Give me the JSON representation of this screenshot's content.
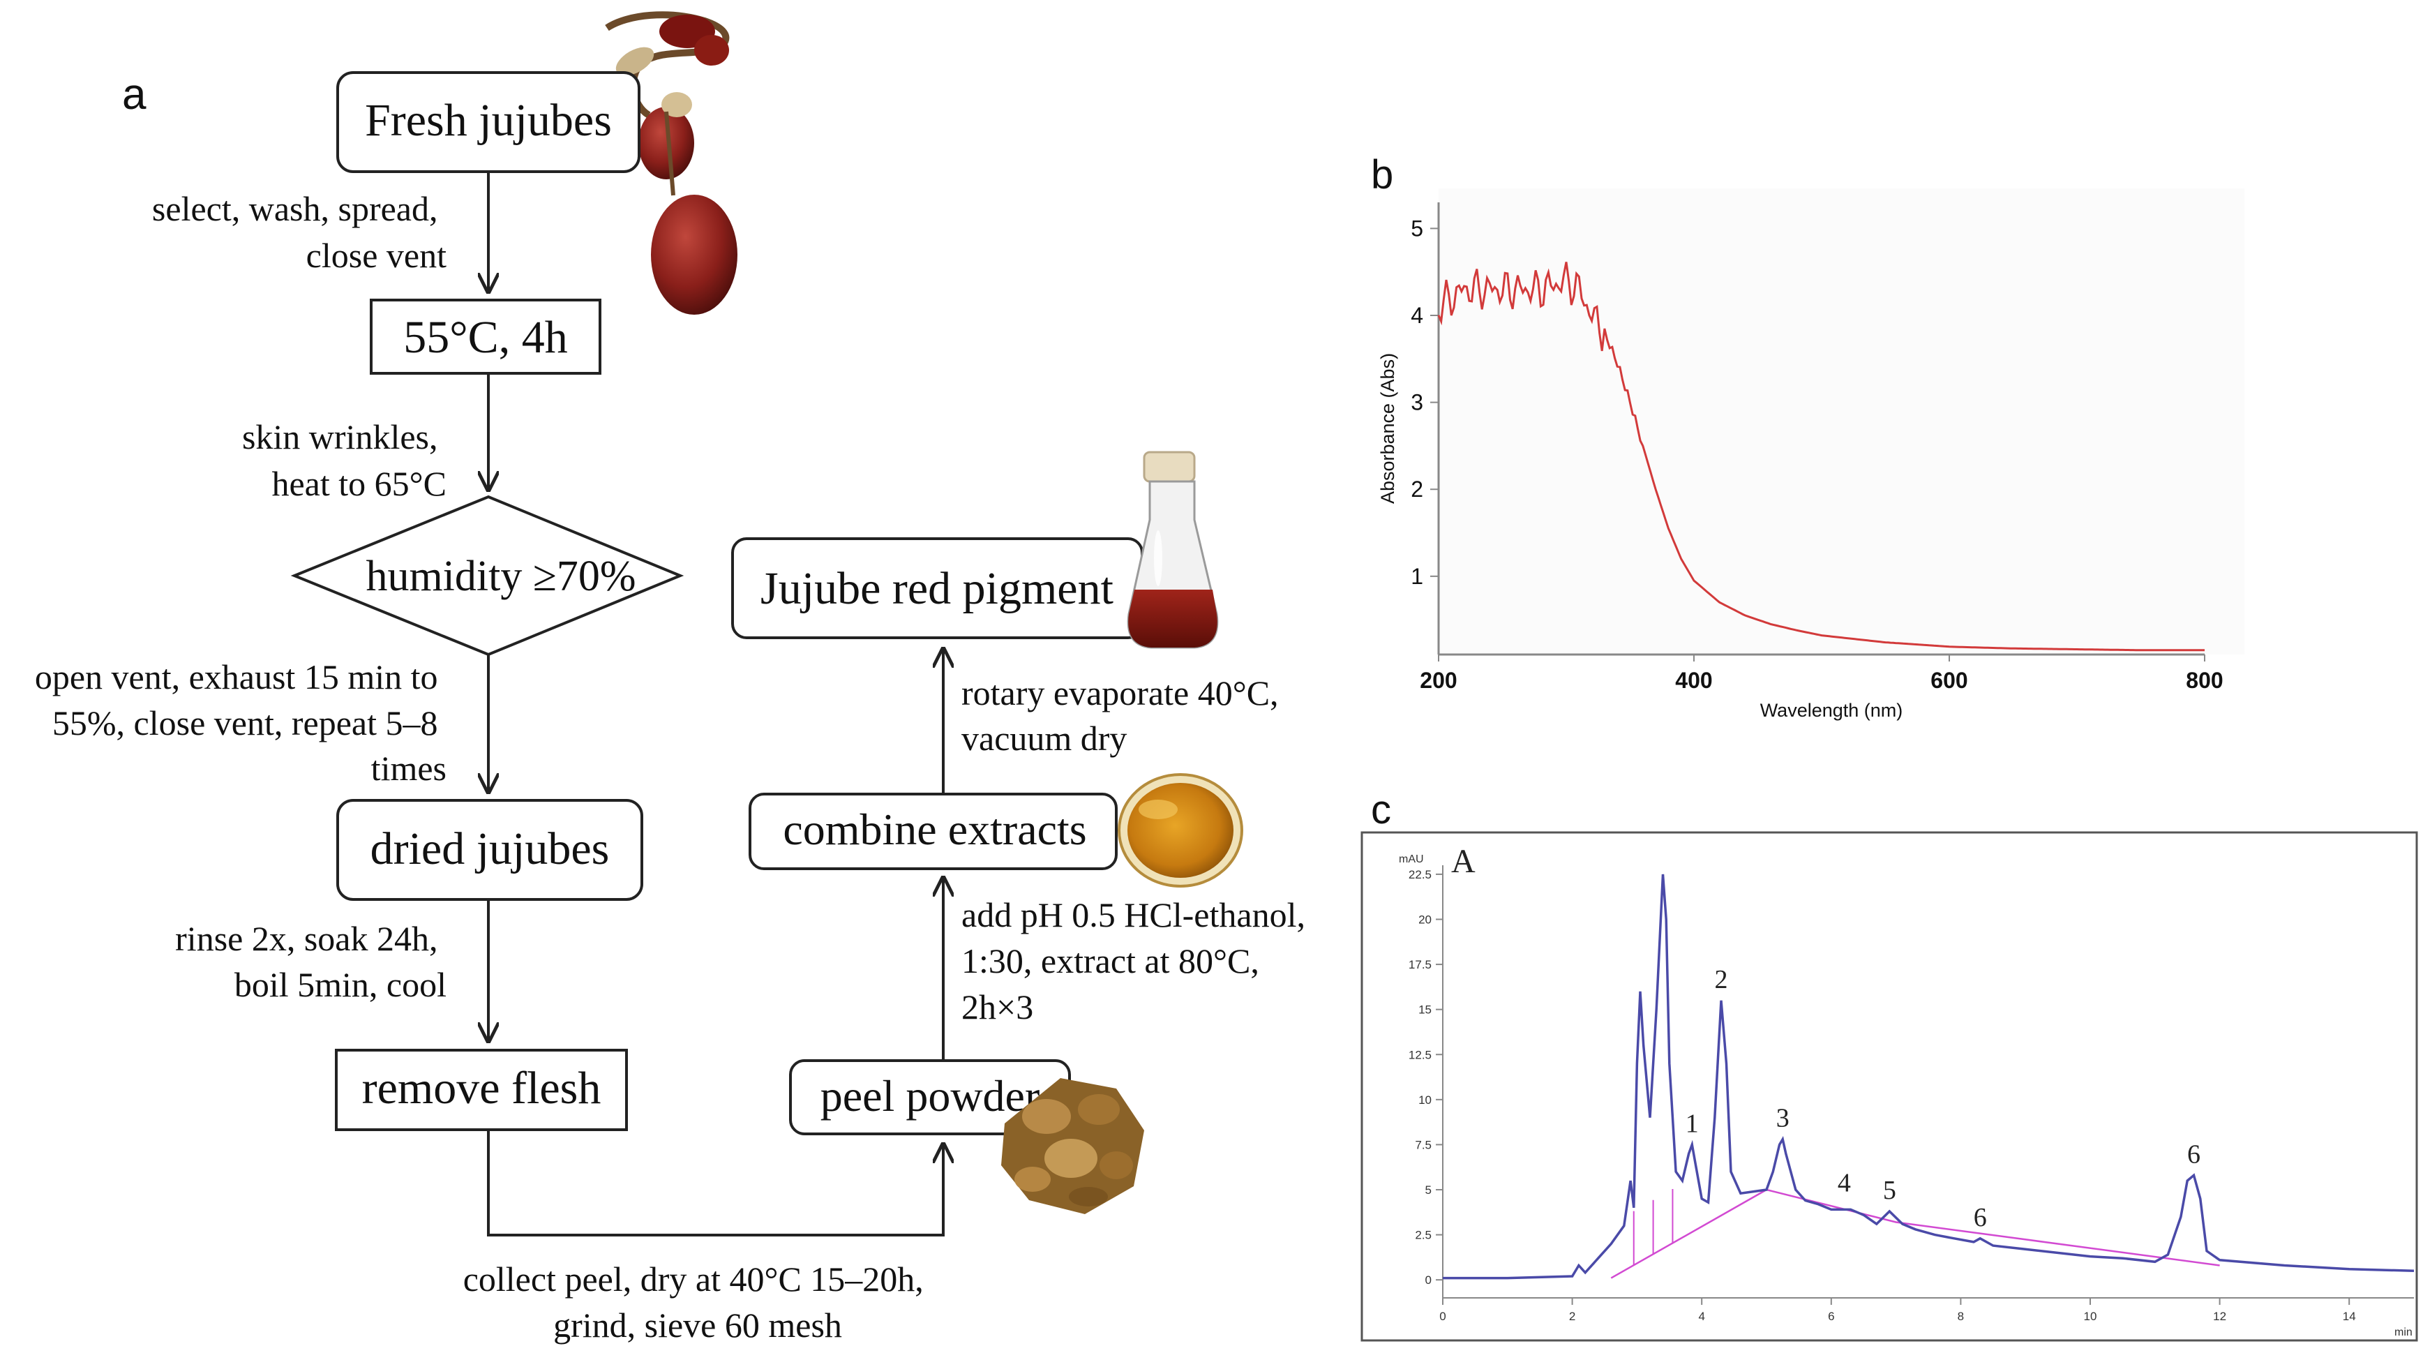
{
  "panel_labels": {
    "a": "a",
    "b": "b",
    "c": "c"
  },
  "flow": {
    "boxes": {
      "fresh": "Fresh jujubes",
      "temp": "55°C, 4h",
      "humidity": "humidity ≥70%",
      "dried": "dried jujubes",
      "remove": "remove flesh",
      "peel": "peel powder",
      "combine": "combine extracts",
      "pigment": "Jujube red pigment"
    },
    "steps": {
      "s1": [
        "select, wash, spread,",
        "close vent"
      ],
      "s2": [
        "skin wrinkles,",
        "heat to 65°C"
      ],
      "s3": [
        "open vent, exhaust 15 min to",
        "55%, close vent, repeat 5–8",
        "times"
      ],
      "s4": [
        "rinse 2x, soak 24h,",
        "boil 5min, cool"
      ],
      "s5": [
        "collect peel, dry at 40°C 15–20h,",
        "grind, sieve 60 mesh"
      ],
      "s6": [
        "add pH 0.5 HCl-ethanol,",
        "1:30, extract at 80°C,",
        "2h×3"
      ],
      "s7": [
        "rotary evaporate 40°C,",
        "vacuum dry"
      ]
    }
  },
  "chart_data": [
    {
      "type": "line",
      "xlabel": "Wavelength (nm)",
      "ylabel": "Absorbance (Abs)",
      "xlim": [
        200,
        800
      ],
      "ylim": [
        0.1,
        5.3
      ],
      "xticks": [
        "200",
        "400",
        "600",
        "800"
      ],
      "yticks": [
        "1",
        "2",
        "3",
        "4",
        "5"
      ],
      "color": "#d23a3a",
      "x": [
        200,
        220,
        250,
        280,
        300,
        310,
        320,
        330,
        340,
        350,
        360,
        370,
        380,
        390,
        400,
        420,
        440,
        460,
        480,
        500,
        550,
        600,
        650,
        700,
        750,
        800
      ],
      "y": [
        4.1,
        4.3,
        4.3,
        4.3,
        4.4,
        4.3,
        4.0,
        3.8,
        3.45,
        3.0,
        2.5,
        2.0,
        1.55,
        1.2,
        0.95,
        0.7,
        0.55,
        0.45,
        0.38,
        0.32,
        0.24,
        0.19,
        0.17,
        0.16,
        0.15,
        0.15
      ]
    },
    {
      "type": "line",
      "panel_title": "A",
      "yunit": "mAU",
      "xunit": "min",
      "xlim": [
        0,
        15
      ],
      "ylim": [
        -1,
        23
      ],
      "xticks": [
        "0",
        "2",
        "4",
        "6",
        "8",
        "10",
        "12",
        "14"
      ],
      "yticks": [
        "0",
        "2.5",
        "5",
        "7.5",
        "10",
        "12.5",
        "15",
        "17.5",
        "20",
        "22.5"
      ],
      "color": "#4a4aa8",
      "baseline_color": "#d24ad2",
      "x": [
        0,
        1.0,
        2.0,
        2.1,
        2.2,
        2.4,
        2.6,
        2.8,
        2.9,
        2.95,
        3.0,
        3.05,
        3.1,
        3.2,
        3.3,
        3.4,
        3.45,
        3.5,
        3.6,
        3.7,
        3.8,
        3.85,
        3.9,
        4.0,
        4.1,
        4.2,
        4.3,
        4.38,
        4.45,
        4.6,
        4.8,
        5.0,
        5.1,
        5.2,
        5.25,
        5.3,
        5.45,
        5.6,
        5.8,
        6.0,
        6.3,
        6.5,
        6.7,
        6.9,
        7.1,
        7.3,
        7.6,
        7.9,
        8.2,
        8.3,
        8.5,
        9.0,
        10.0,
        10.5,
        11.0,
        11.2,
        11.4,
        11.5,
        11.6,
        11.7,
        11.8,
        12.0,
        13.0,
        14.0,
        15.0
      ],
      "y": [
        0.1,
        0.1,
        0.2,
        0.8,
        0.4,
        1.2,
        2.0,
        3.0,
        5.5,
        4.0,
        12.0,
        16.0,
        13.0,
        9.0,
        15.0,
        22.5,
        20.0,
        12.0,
        6.0,
        5.5,
        7.0,
        7.5,
        6.5,
        4.5,
        4.3,
        9.0,
        15.5,
        12.0,
        6.0,
        4.8,
        4.9,
        5.0,
        6.0,
        7.5,
        7.8,
        7.0,
        5.0,
        4.4,
        4.2,
        3.9,
        3.9,
        3.6,
        3.1,
        3.8,
        3.1,
        2.8,
        2.5,
        2.3,
        2.1,
        2.3,
        1.9,
        1.7,
        1.3,
        1.2,
        1.0,
        1.4,
        3.5,
        5.5,
        5.8,
        4.5,
        1.6,
        1.1,
        0.8,
        0.6,
        0.5
      ],
      "peaks": [
        {
          "label": "1",
          "x": 3.85,
          "y": 7.5
        },
        {
          "label": "2",
          "x": 4.3,
          "y": 15.5
        },
        {
          "label": "3",
          "x": 5.25,
          "y": 7.8
        },
        {
          "label": "4",
          "x": 6.2,
          "y": 4.2
        },
        {
          "label": "5",
          "x": 6.9,
          "y": 3.8
        },
        {
          "label": "6",
          "x": 8.3,
          "y": 2.3
        },
        {
          "label": "6",
          "x": 11.6,
          "y": 5.8
        }
      ],
      "baseline": [
        [
          2.6,
          0.1
        ],
        [
          5.0,
          5.0
        ],
        [
          7.0,
          3.2
        ],
        [
          12.0,
          0.8
        ]
      ]
    }
  ]
}
